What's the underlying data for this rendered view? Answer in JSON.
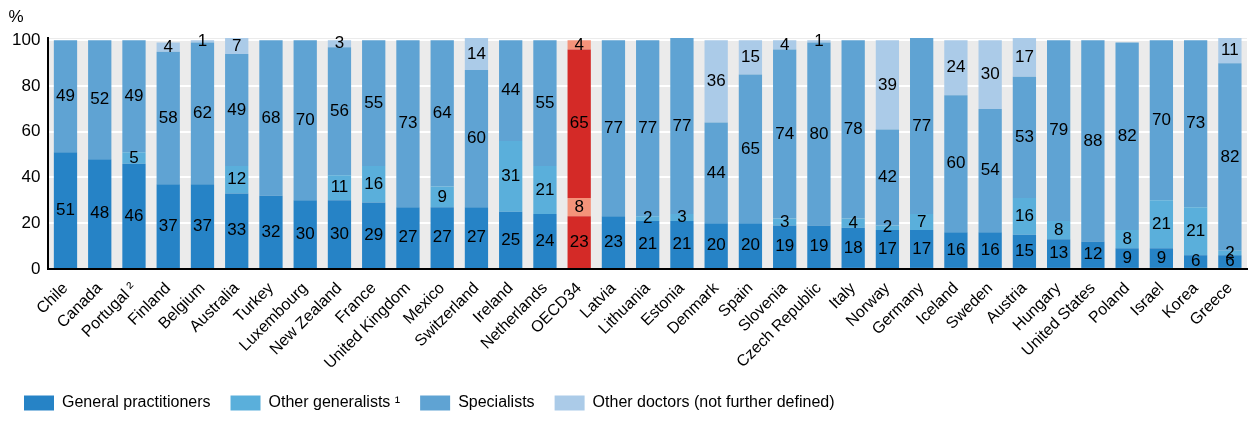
{
  "chart_data": {
    "type": "bar",
    "stacked": true,
    "ylabel": "%",
    "ylim": [
      0,
      101
    ],
    "yticks": [
      0,
      20,
      40,
      60,
      80,
      100
    ],
    "grid": "y",
    "legend": "bottom",
    "data_labels": true,
    "categories": [
      "Chile",
      "Canada",
      "Portugal ²",
      "Finland",
      "Belgium",
      "Australia",
      "Turkey",
      "Luxembourg",
      "New Zealand",
      "France",
      "United Kingdom",
      "Mexico",
      "Switzerland",
      "Ireland",
      "Netherlands",
      "OECD34",
      "Latvia",
      "Lithuania",
      "Estonia",
      "Denmark",
      "Spain",
      "Slovenia",
      "Czech Republic",
      "Italy",
      "Norway",
      "Germany",
      "Iceland",
      "Sweden",
      "Austria",
      "Hungary",
      "United States",
      "Poland",
      "Israel",
      "Korea",
      "Greece"
    ],
    "series": [
      {
        "name": "General practitioners",
        "color": "#2683c6",
        "colors": [
          "#2683c6",
          "#2683c6",
          "#2683c6",
          "#2683c6",
          "#2683c6",
          "#2683c6",
          "#2683c6",
          "#2683c6",
          "#2683c6",
          "#2683c6",
          "#2683c6",
          "#2683c6",
          "#2683c6",
          "#2683c6",
          "#2683c6",
          "#d42a27",
          "#2683c6",
          "#2683c6",
          "#2683c6",
          "#2683c6",
          "#2683c6",
          "#2683c6",
          "#2683c6",
          "#2683c6",
          "#2683c6",
          "#2683c6",
          "#2683c6",
          "#2683c6",
          "#2683c6",
          "#2683c6",
          "#2683c6",
          "#2683c6",
          "#2683c6",
          "#2683c6",
          "#2683c6"
        ],
        "values": [
          51,
          48,
          46,
          37,
          37,
          33,
          32,
          30,
          30,
          29,
          27,
          27,
          27,
          25,
          24,
          23,
          23,
          21,
          21,
          20,
          20,
          19,
          19,
          18,
          17,
          17,
          16,
          16,
          15,
          13,
          12,
          9,
          9,
          6,
          6
        ]
      },
      {
        "name": "Other generalists ¹",
        "color": "#5aafdb",
        "colors": [
          "#5aafdb",
          "#5aafdb",
          "#5aafdb",
          "#5aafdb",
          "#5aafdb",
          "#5aafdb",
          "#5aafdb",
          "#5aafdb",
          "#5aafdb",
          "#5aafdb",
          "#5aafdb",
          "#5aafdb",
          "#5aafdb",
          "#5aafdb",
          "#5aafdb",
          "#f4937a",
          "#5aafdb",
          "#5aafdb",
          "#5aafdb",
          "#5aafdb",
          "#5aafdb",
          "#5aafdb",
          "#5aafdb",
          "#5aafdb",
          "#5aafdb",
          "#5aafdb",
          "#5aafdb",
          "#5aafdb",
          "#5aafdb",
          "#5aafdb",
          "#5aafdb",
          "#5aafdb",
          "#5aafdb",
          "#5aafdb",
          "#5aafdb"
        ],
        "values": [
          null,
          null,
          5,
          null,
          null,
          12,
          null,
          null,
          11,
          16,
          null,
          9,
          null,
          31,
          21,
          8,
          null,
          2,
          3,
          null,
          null,
          3,
          null,
          4,
          2,
          7,
          null,
          null,
          16,
          8,
          null,
          8,
          21,
          21,
          2
        ]
      },
      {
        "name": "Specialists",
        "color": "#5fa3d3",
        "colors": [
          "#5fa3d3",
          "#5fa3d3",
          "#5fa3d3",
          "#5fa3d3",
          "#5fa3d3",
          "#5fa3d3",
          "#5fa3d3",
          "#5fa3d3",
          "#5fa3d3",
          "#5fa3d3",
          "#5fa3d3",
          "#5fa3d3",
          "#5fa3d3",
          "#5fa3d3",
          "#5fa3d3",
          "#d42a27",
          "#5fa3d3",
          "#5fa3d3",
          "#5fa3d3",
          "#5fa3d3",
          "#5fa3d3",
          "#5fa3d3",
          "#5fa3d3",
          "#5fa3d3",
          "#5fa3d3",
          "#5fa3d3",
          "#5fa3d3",
          "#5fa3d3",
          "#5fa3d3",
          "#5fa3d3",
          "#5fa3d3",
          "#5fa3d3",
          "#5fa3d3",
          "#5fa3d3",
          "#5fa3d3"
        ],
        "values": [
          49,
          52,
          49,
          58,
          62,
          49,
          68,
          70,
          56,
          55,
          73,
          64,
          60,
          44,
          55,
          65,
          77,
          77,
          77,
          44,
          65,
          74,
          80,
          78,
          42,
          77,
          60,
          54,
          53,
          79,
          88,
          82,
          70,
          73,
          82
        ]
      },
      {
        "name": "Other doctors (not further defined)",
        "color": "#abcbe8",
        "colors": [
          "#abcbe8",
          "#abcbe8",
          "#abcbe8",
          "#abcbe8",
          "#abcbe8",
          "#abcbe8",
          "#abcbe8",
          "#abcbe8",
          "#abcbe8",
          "#abcbe8",
          "#abcbe8",
          "#abcbe8",
          "#abcbe8",
          "#abcbe8",
          "#abcbe8",
          "#f4937a",
          "#abcbe8",
          "#abcbe8",
          "#abcbe8",
          "#abcbe8",
          "#abcbe8",
          "#abcbe8",
          "#abcbe8",
          "#abcbe8",
          "#abcbe8",
          "#abcbe8",
          "#abcbe8",
          "#abcbe8",
          "#abcbe8",
          "#abcbe8",
          "#abcbe8",
          "#abcbe8",
          "#abcbe8",
          "#abcbe8",
          "#abcbe8"
        ],
        "values": [
          null,
          null,
          null,
          4,
          1,
          7,
          null,
          null,
          3,
          null,
          null,
          null,
          14,
          null,
          null,
          4,
          null,
          null,
          null,
          36,
          15,
          4,
          1,
          null,
          39,
          null,
          24,
          30,
          17,
          null,
          null,
          null,
          null,
          null,
          11
        ]
      }
    ]
  }
}
